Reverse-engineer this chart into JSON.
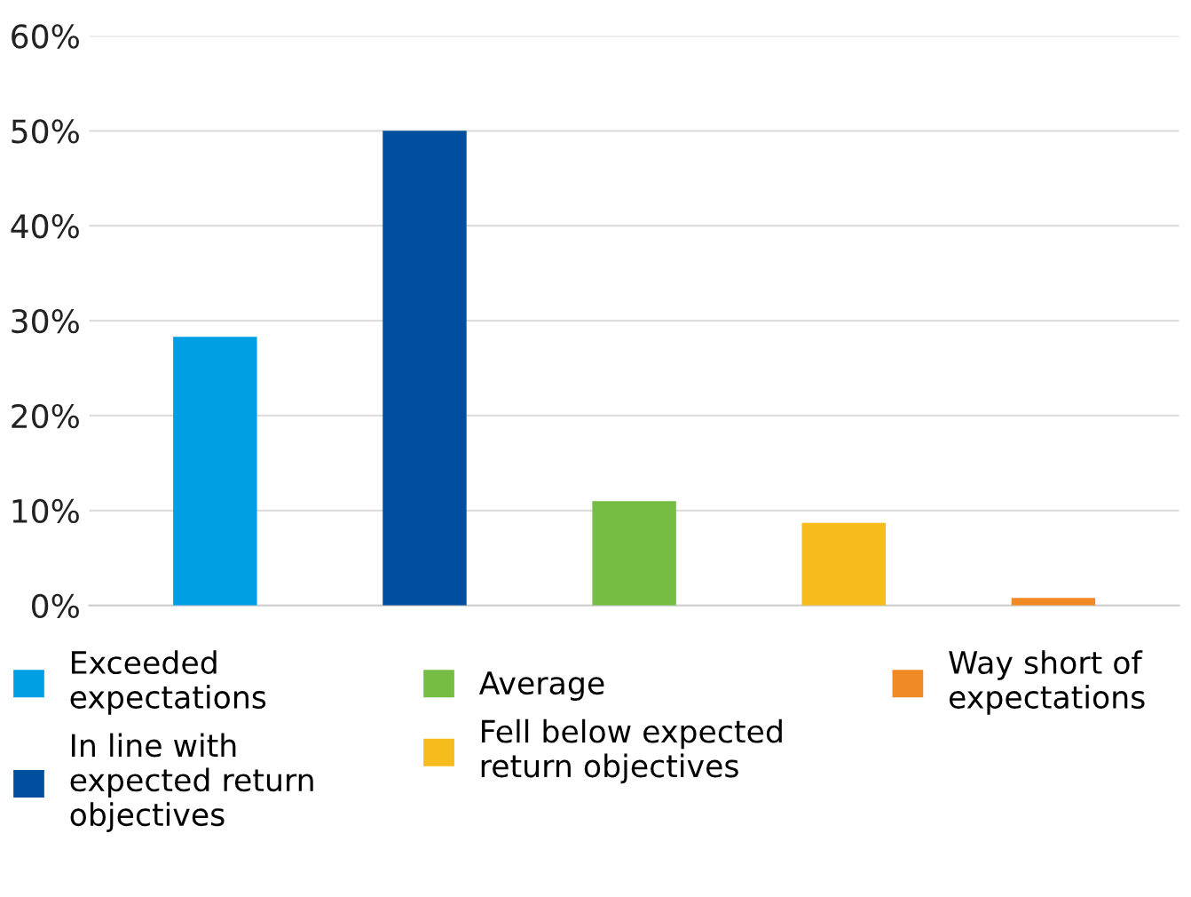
{
  "chart_data": {
    "type": "bar",
    "categories": [
      null,
      null,
      null,
      null,
      null
    ],
    "series": [
      {
        "name": "Exceeded expectations",
        "color": "#009fe3",
        "values": [
          28.3,
          null,
          null,
          null,
          null
        ]
      },
      {
        "name": "In line with expected return objectives",
        "color": "#004f9f",
        "values": [
          null,
          50,
          null,
          null,
          null
        ]
      },
      {
        "name": "Average",
        "color": "#76bd43",
        "values": [
          null,
          null,
          11,
          null,
          null
        ]
      },
      {
        "name": "Fell below expected return objectives",
        "color": "#f6bc1b",
        "values": [
          null,
          null,
          null,
          8.7,
          null
        ]
      },
      {
        "name": "Way short of expectations",
        "color": "#f08a24",
        "values": [
          null,
          null,
          null,
          null,
          0.8
        ]
      }
    ],
    "ylim": [
      0,
      60
    ],
    "yticks": [
      {
        "value": 0,
        "label": "0%"
      },
      {
        "value": 10,
        "label": "10%"
      },
      {
        "value": 20,
        "label": "20%"
      },
      {
        "value": 30,
        "label": "30%"
      },
      {
        "value": 40,
        "label": "40%"
      },
      {
        "value": 50,
        "label": "50%"
      },
      {
        "value": 60,
        "label": "60%"
      }
    ],
    "grid": "y",
    "legend": "bottom"
  }
}
